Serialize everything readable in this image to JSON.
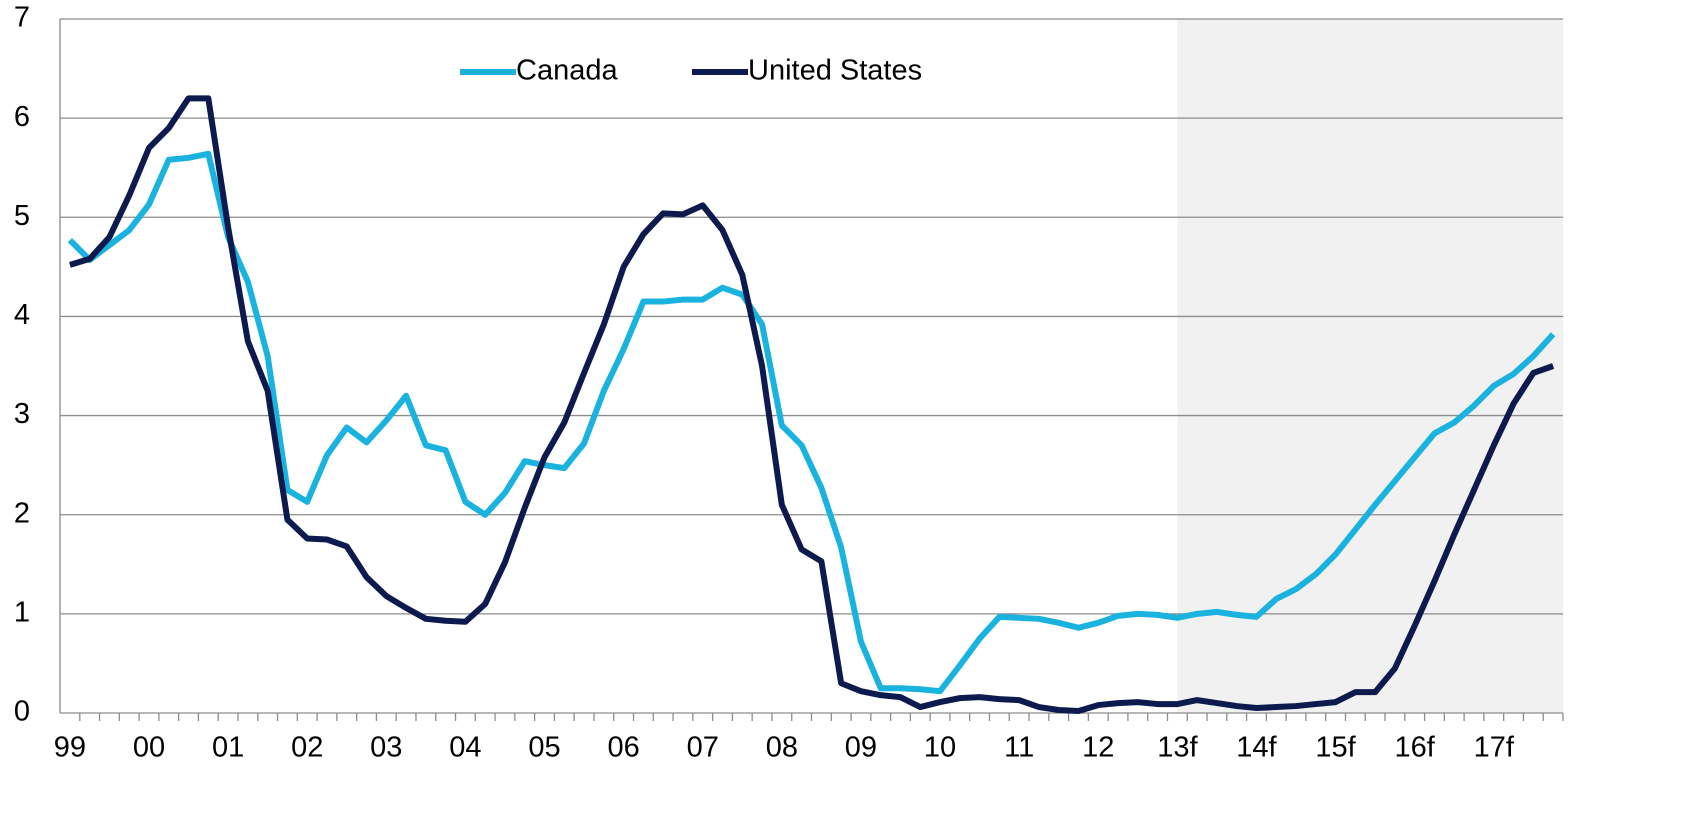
{
  "chart_data": {
    "type": "line",
    "categories": [
      "99",
      null,
      null,
      null,
      "00",
      null,
      null,
      null,
      "01",
      null,
      null,
      null,
      "02",
      null,
      null,
      null,
      "03",
      null,
      null,
      null,
      "04",
      null,
      null,
      null,
      "05",
      null,
      null,
      null,
      "06",
      null,
      null,
      null,
      "07",
      null,
      null,
      null,
      "08",
      null,
      null,
      null,
      "09",
      null,
      null,
      null,
      "10",
      null,
      null,
      null,
      "11",
      null,
      null,
      null,
      "12",
      null,
      null,
      null,
      "13f",
      null,
      null,
      null,
      "14f",
      null,
      null,
      null,
      "15f",
      null,
      null,
      null,
      "16f",
      null,
      null,
      null,
      "17f",
      null,
      null,
      null
    ],
    "series": [
      {
        "name": "Canada",
        "color": "#1ab2df",
        "values": [
          4.77,
          4.57,
          4.72,
          4.87,
          5.13,
          5.58,
          5.6,
          5.64,
          4.8,
          4.35,
          3.6,
          2.25,
          2.13,
          2.6,
          2.88,
          2.73,
          2.95,
          3.2,
          2.7,
          2.65,
          2.13,
          2.0,
          2.22,
          2.54,
          2.5,
          2.47,
          2.72,
          3.25,
          3.67,
          4.15,
          4.15,
          4.17,
          4.17,
          4.29,
          4.22,
          3.92,
          2.9,
          2.7,
          2.27,
          1.67,
          0.72,
          0.25,
          0.25,
          0.24,
          0.22,
          0.48,
          0.75,
          0.97,
          0.96,
          0.95,
          0.91,
          0.86,
          0.91,
          0.98,
          1.0,
          0.99,
          0.96,
          1.0,
          1.02,
          0.99,
          0.97,
          1.15,
          1.25,
          1.4,
          1.6,
          1.85,
          2.1,
          2.34,
          2.58,
          2.82,
          2.93,
          3.1,
          3.3,
          3.42,
          3.6,
          3.82
        ]
      },
      {
        "name": "United States",
        "color": "#0c1a4e",
        "values": [
          4.52,
          4.58,
          4.8,
          5.22,
          5.7,
          5.9,
          6.2,
          6.2,
          4.9,
          3.75,
          3.25,
          1.95,
          1.76,
          1.75,
          1.68,
          1.37,
          1.18,
          1.06,
          0.95,
          0.93,
          0.92,
          1.1,
          1.52,
          2.07,
          2.58,
          2.93,
          3.43,
          3.92,
          4.5,
          4.83,
          5.04,
          5.03,
          5.12,
          4.87,
          4.42,
          3.5,
          2.1,
          1.65,
          1.53,
          0.3,
          0.22,
          0.18,
          0.16,
          0.06,
          0.11,
          0.15,
          0.16,
          0.14,
          0.13,
          0.06,
          0.03,
          0.02,
          0.08,
          0.1,
          0.11,
          0.09,
          0.09,
          0.13,
          0.1,
          0.07,
          0.05,
          0.06,
          0.07,
          0.09,
          0.11,
          0.21,
          0.21,
          0.45,
          0.88,
          1.33,
          1.8,
          2.25,
          2.7,
          3.12,
          3.43,
          3.5
        ]
      }
    ],
    "ylim": [
      0,
      7
    ],
    "yticks": [
      0,
      1,
      2,
      3,
      4,
      5,
      6,
      7
    ],
    "grid": true,
    "legend": "top"
  }
}
